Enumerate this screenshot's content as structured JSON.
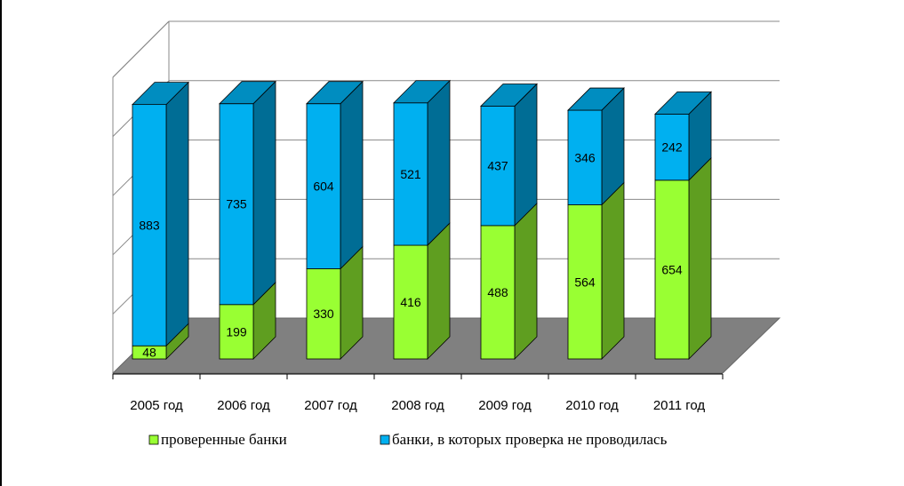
{
  "chart_data": {
    "type": "bar",
    "stacked": true,
    "three_d": true,
    "categories": [
      "2005 год",
      "2006 год",
      "2007 год",
      "2008 год",
      "2009 год",
      "2010 год",
      "2011 год"
    ],
    "series": [
      {
        "name": "проверенные банки",
        "values": [
          48,
          199,
          330,
          416,
          488,
          564,
          654
        ],
        "color": "#99ff33"
      },
      {
        "name": "банки, в которых проверка не проводилась",
        "values": [
          883,
          735,
          604,
          521,
          437,
          346,
          242
        ],
        "color": "#00b0f0"
      }
    ],
    "ylim": [
      0,
      931
    ],
    "grid": true,
    "legend_position": "bottom",
    "floor_color": "#808080"
  }
}
